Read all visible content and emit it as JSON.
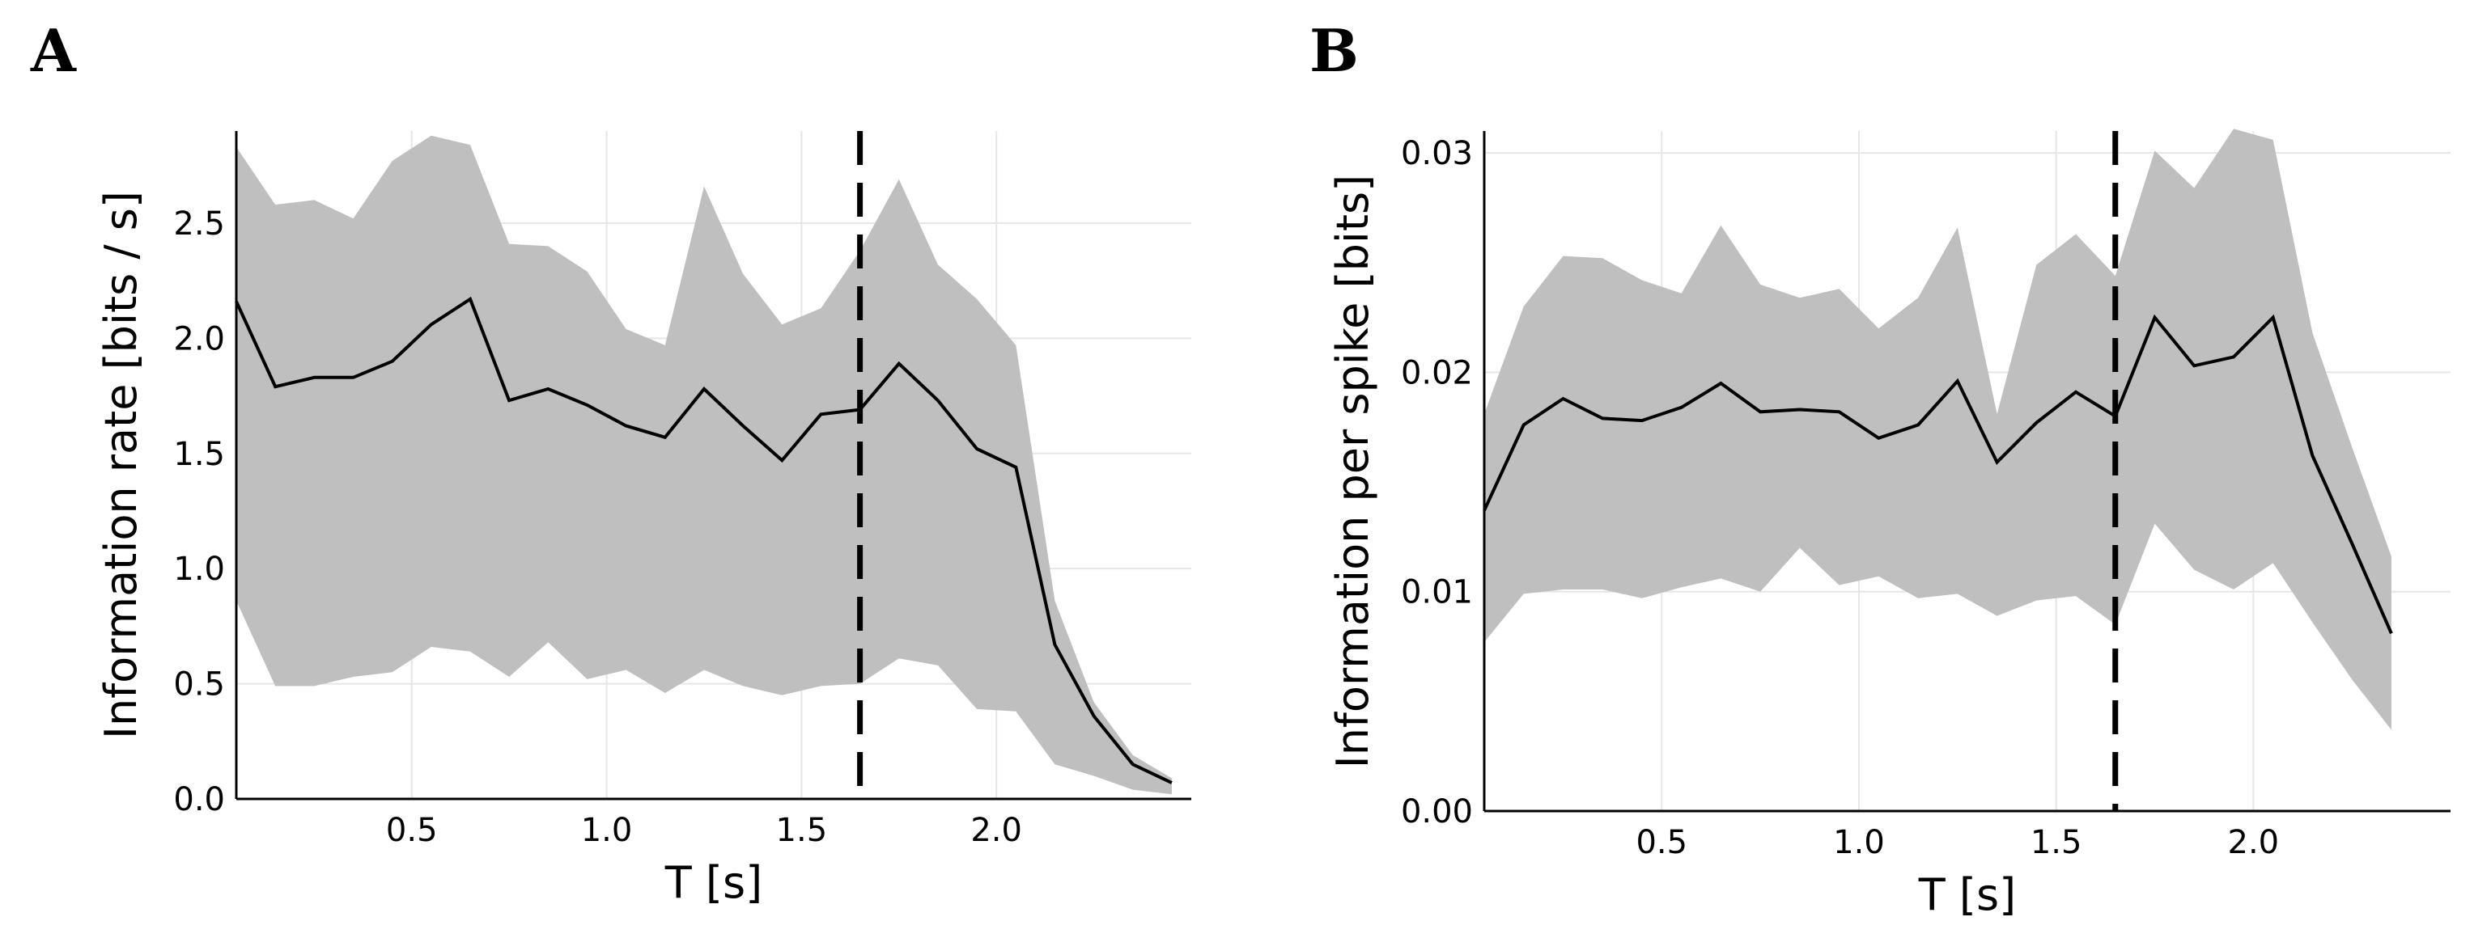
{
  "chart_data": [
    {
      "type": "line",
      "panel_label": "A",
      "xlabel": "T [s]",
      "ylabel": "Information rate [bits / s]",
      "xlim": [
        0.05,
        2.5
      ],
      "ylim": [
        0,
        2.9
      ],
      "xticks": [
        0.5,
        1.0,
        1.5,
        2.0
      ],
      "xtick_labels": [
        "0.5",
        "1.0",
        "1.5",
        "2.0"
      ],
      "yticks": [
        0.0,
        0.5,
        1.0,
        1.5,
        2.0,
        2.5
      ],
      "ytick_labels": [
        "0.0",
        "0.5",
        "1.0",
        "1.5",
        "2.0",
        "2.5"
      ],
      "grid": true,
      "vline_x": 1.65,
      "x": [
        0.05,
        0.15,
        0.25,
        0.35,
        0.45,
        0.55,
        0.65,
        0.75,
        0.85,
        0.95,
        1.05,
        1.15,
        1.25,
        1.35,
        1.45,
        1.55,
        1.65,
        1.75,
        1.85,
        1.95,
        2.05,
        2.15,
        2.25,
        2.35,
        2.45
      ],
      "series": [
        {
          "name": "mean",
          "values": [
            2.16,
            1.79,
            1.83,
            1.83,
            1.9,
            2.06,
            2.17,
            1.73,
            1.78,
            1.71,
            1.62,
            1.57,
            1.78,
            1.62,
            1.47,
            1.67,
            1.69,
            1.89,
            1.73,
            1.52,
            1.44,
            0.67,
            0.36,
            0.15,
            0.07
          ]
        },
        {
          "name": "upper",
          "values": [
            2.83,
            2.58,
            2.6,
            2.52,
            2.77,
            2.88,
            2.84,
            2.41,
            2.4,
            2.29,
            2.04,
            1.97,
            2.66,
            2.28,
            2.06,
            2.13,
            2.38,
            2.69,
            2.32,
            2.17,
            1.97,
            0.86,
            0.42,
            0.19,
            0.09
          ]
        },
        {
          "name": "lower",
          "values": [
            0.86,
            0.49,
            0.49,
            0.53,
            0.55,
            0.66,
            0.64,
            0.53,
            0.68,
            0.52,
            0.56,
            0.46,
            0.56,
            0.49,
            0.45,
            0.49,
            0.5,
            0.61,
            0.58,
            0.39,
            0.38,
            0.15,
            0.1,
            0.04,
            0.02
          ]
        }
      ]
    },
    {
      "type": "line",
      "panel_label": "B",
      "xlabel": "T [s]",
      "ylabel": "Information per spike [bits]",
      "xlim": [
        0.05,
        2.5
      ],
      "ylim": [
        0,
        0.031
      ],
      "xticks": [
        0.5,
        1.0,
        1.5,
        2.0
      ],
      "xtick_labels": [
        "0.5",
        "1.0",
        "1.5",
        "2.0"
      ],
      "yticks": [
        0.0,
        0.01,
        0.02,
        0.03
      ],
      "ytick_labels": [
        "0.00",
        "0.01",
        "0.02",
        "0.03"
      ],
      "grid": true,
      "vline_x": 1.65,
      "x": [
        0.05,
        0.15,
        0.25,
        0.35,
        0.45,
        0.55,
        0.65,
        0.75,
        0.85,
        0.95,
        1.05,
        1.15,
        1.25,
        1.35,
        1.45,
        1.55,
        1.65,
        1.75,
        1.85,
        1.95,
        2.05,
        2.15,
        2.25,
        2.35
      ],
      "series": [
        {
          "name": "mean",
          "values": [
            0.0137,
            0.0176,
            0.0188,
            0.0179,
            0.0178,
            0.0184,
            0.0195,
            0.0182,
            0.0183,
            0.0182,
            0.017,
            0.0176,
            0.0196,
            0.0159,
            0.0177,
            0.0191,
            0.018,
            0.0225,
            0.0203,
            0.0207,
            0.0225,
            0.0162,
            0.0122,
            0.0081
          ]
        },
        {
          "name": "upper",
          "values": [
            0.0181,
            0.023,
            0.0253,
            0.0252,
            0.0242,
            0.0236,
            0.0267,
            0.024,
            0.0234,
            0.0238,
            0.022,
            0.0234,
            0.0266,
            0.0181,
            0.0249,
            0.0263,
            0.0244,
            0.0301,
            0.0284,
            0.0311,
            0.0306,
            0.0218,
            0.0166,
            0.0116
          ]
        },
        {
          "name": "lower",
          "values": [
            0.0077,
            0.0099,
            0.0101,
            0.0101,
            0.0097,
            0.0102,
            0.0106,
            0.01,
            0.012,
            0.0103,
            0.0107,
            0.0097,
            0.0099,
            0.0089,
            0.0096,
            0.0098,
            0.0085,
            0.0131,
            0.011,
            0.0101,
            0.0113,
            0.0086,
            0.006,
            0.0037
          ]
        }
      ]
    }
  ]
}
